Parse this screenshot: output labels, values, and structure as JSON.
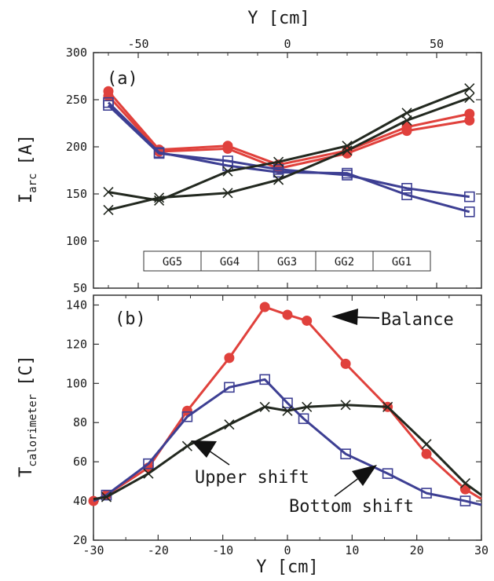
{
  "chart_data": [
    {
      "panel": "a",
      "panel_label": "(a)",
      "type": "line",
      "xlabel": "Y [cm]",
      "ylabel_main": "I",
      "ylabel_sub": "arc",
      "ylabel_unit": "[A]",
      "xlim": [
        -65,
        65
      ],
      "ylim": [
        50,
        300
      ],
      "xticks": [
        -50,
        0,
        50
      ],
      "yticks": [
        50,
        100,
        150,
        200,
        250,
        300
      ],
      "groups": [
        "GG5",
        "GG4",
        "GG3",
        "GG2",
        "GG1"
      ],
      "series": [
        {
          "color": "#e0413c",
          "marker": "circle",
          "x": [
            -60,
            -43,
            -20,
            -3,
            20,
            40,
            61
          ],
          "y": [
            259,
            197,
            201,
            181,
            196,
            221,
            235
          ]
        },
        {
          "color": "#e0413c",
          "marker": "circle",
          "x": [
            -60,
            -43,
            -20,
            -3,
            20,
            40,
            61
          ],
          "y": [
            254,
            195,
            198,
            177,
            193,
            217,
            228
          ]
        },
        {
          "color": "#3d3f93",
          "marker": "square",
          "x": [
            -60,
            -43,
            -20,
            -3,
            20,
            40,
            61
          ],
          "y": [
            244,
            193,
            185,
            176,
            170,
            156,
            147
          ]
        },
        {
          "color": "#3d3f93",
          "marker": "square",
          "x": [
            -60,
            -43,
            -20,
            -3,
            20,
            40,
            61
          ],
          "y": [
            247,
            194,
            180,
            173,
            172,
            149,
            131
          ]
        },
        {
          "color": "#22281f",
          "marker": "x",
          "x": [
            -60,
            -43,
            -20,
            -3,
            20,
            40,
            61
          ],
          "y": [
            152,
            143,
            174,
            184,
            201,
            236,
            262
          ]
        },
        {
          "color": "#22281f",
          "marker": "x",
          "x": [
            -60,
            -43,
            -20,
            -3,
            20,
            40,
            61
          ],
          "y": [
            133,
            146,
            151,
            165,
            196,
            228,
            252
          ]
        }
      ]
    },
    {
      "panel": "b",
      "panel_label": "(b)",
      "type": "line",
      "xlabel": "Y [cm]",
      "ylabel_main": "T",
      "ylabel_sub": "calorimeter",
      "ylabel_unit": "[C]",
      "xlim": [
        -30,
        30
      ],
      "ylim": [
        20,
        145
      ],
      "xticks": [
        -30,
        -20,
        -10,
        0,
        10,
        20,
        30
      ],
      "yticks": [
        20,
        40,
        60,
        80,
        100,
        120,
        140
      ],
      "series": [
        {
          "name": "Balance",
          "color": "#e0413c",
          "marker": "circle",
          "markevery": [
            1,
            1,
            1,
            1,
            1,
            1,
            1,
            1,
            1,
            1,
            1,
            1,
            0
          ],
          "x": [
            -30,
            -28,
            -21.5,
            -15.5,
            -9,
            -3.5,
            0,
            3,
            9,
            15.5,
            21.5,
            27.5,
            30
          ],
          "y": [
            40,
            43,
            57,
            86,
            113,
            139,
            135,
            132,
            110,
            88,
            64,
            46,
            41
          ]
        },
        {
          "name": "Upper shift",
          "color": "#3d3f93",
          "marker": "square",
          "markevery": [
            0,
            1,
            1,
            1,
            1,
            1,
            1,
            1,
            1,
            1,
            1,
            1,
            0
          ],
          "x": [
            -30,
            -28,
            -21.5,
            -15.5,
            -9,
            -3.5,
            0,
            2.5,
            9,
            15.5,
            21.5,
            27.5,
            30
          ],
          "y": [
            40,
            43,
            59,
            83,
            98,
            102,
            90,
            82,
            64,
            54,
            44,
            40,
            38
          ]
        },
        {
          "name": "Bottom shift",
          "color": "#22281f",
          "marker": "x",
          "markevery": [
            0,
            1,
            1,
            1,
            1,
            1,
            1,
            1,
            1,
            1,
            1,
            1,
            0
          ],
          "x": [
            -30,
            -28,
            -21.5,
            -15.5,
            -9,
            -3.5,
            0,
            3,
            9,
            15.5,
            21.5,
            27.5,
            30
          ],
          "y": [
            41,
            42,
            54,
            68,
            79,
            88,
            86,
            88,
            89,
            88,
            69,
            49,
            43
          ]
        }
      ],
      "annotations": {
        "balance": "Balance",
        "upper": "Upper shift",
        "bottom": "Bottom shift"
      }
    }
  ]
}
